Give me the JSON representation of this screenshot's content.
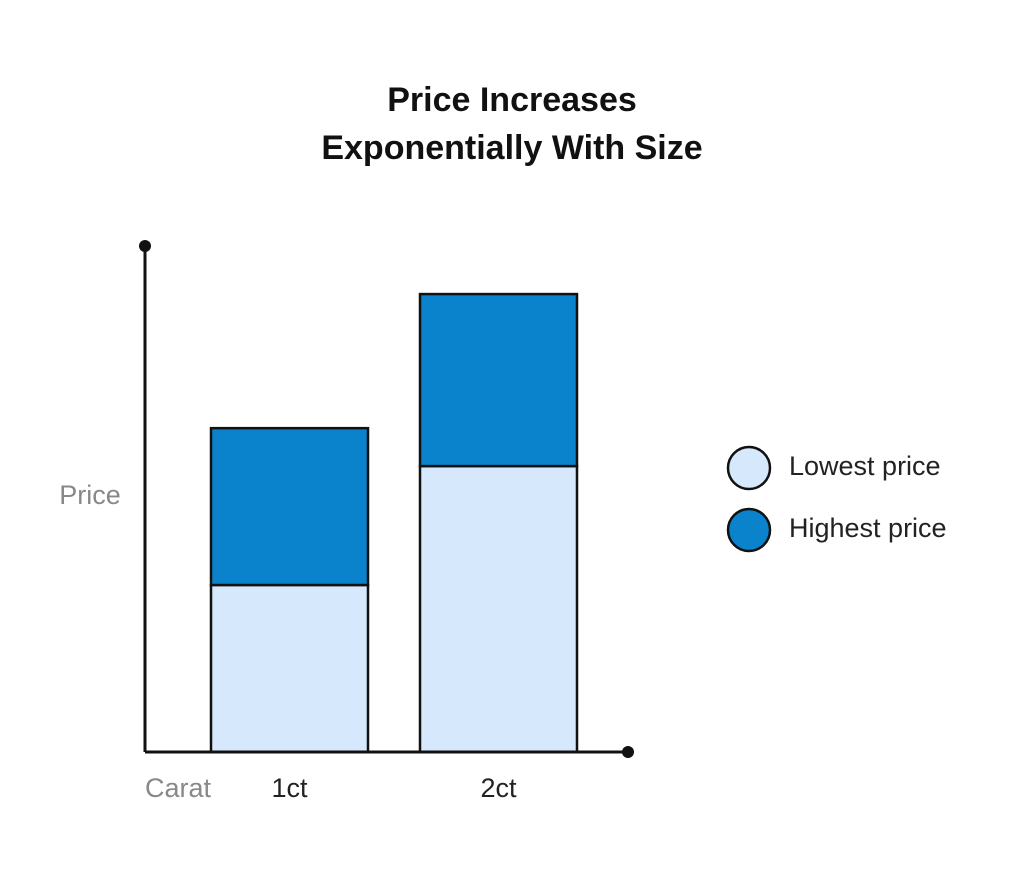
{
  "chart_data": {
    "type": "bar",
    "stacked": true,
    "title": [
      "Price Increases",
      "Exponentially With Size"
    ],
    "y_label": "Price",
    "x_label": "Carat",
    "categories": [
      "1ct",
      "2ct"
    ],
    "ylim": [
      0,
      100
    ],
    "series": [
      {
        "name": "Lowest price",
        "color": "#d6e8fb",
        "values": [
          33,
          56.5
        ]
      },
      {
        "name": "Highest price",
        "color": "#0b82cc",
        "values": [
          31,
          34
        ]
      }
    ],
    "legend": "right"
  }
}
